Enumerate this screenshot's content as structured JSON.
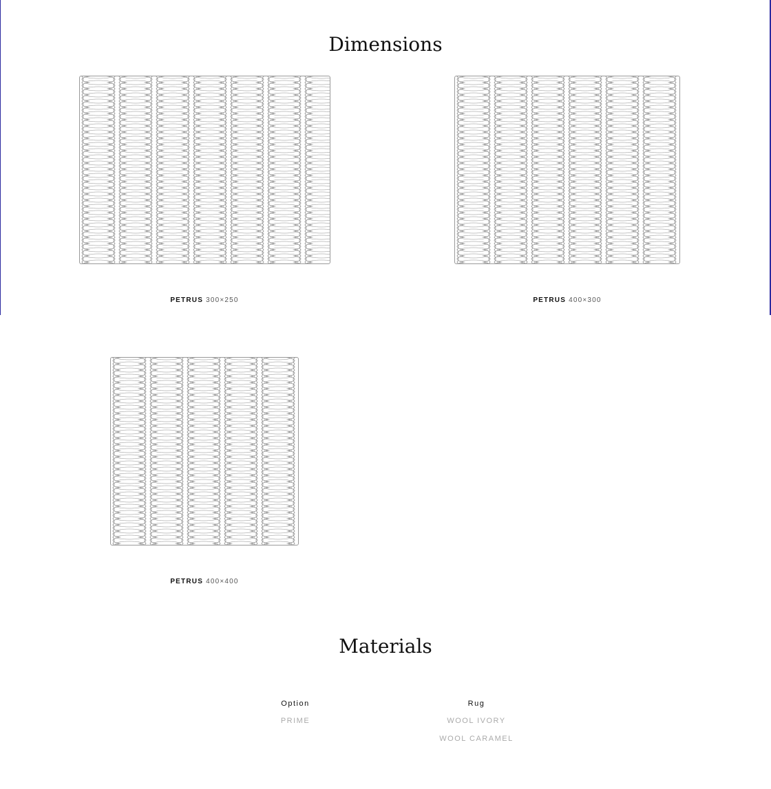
{
  "dimensions": {
    "title": "Dimensions",
    "items": [
      {
        "name": "PETRUS",
        "size": "300×250"
      },
      {
        "name": "PETRUS",
        "size": "400×300"
      },
      {
        "name": "PETRUS",
        "size": "400×400"
      }
    ]
  },
  "materials": {
    "title": "Materials",
    "columns": [
      {
        "header": "Option",
        "values": [
          "PRIME"
        ]
      },
      {
        "header": "Rug",
        "values": [
          "WOOL IVORY",
          "WOOL CARAMEL"
        ]
      }
    ]
  },
  "colors": {
    "frame": "#2b2aa0",
    "pattern_stroke": "#888888"
  }
}
